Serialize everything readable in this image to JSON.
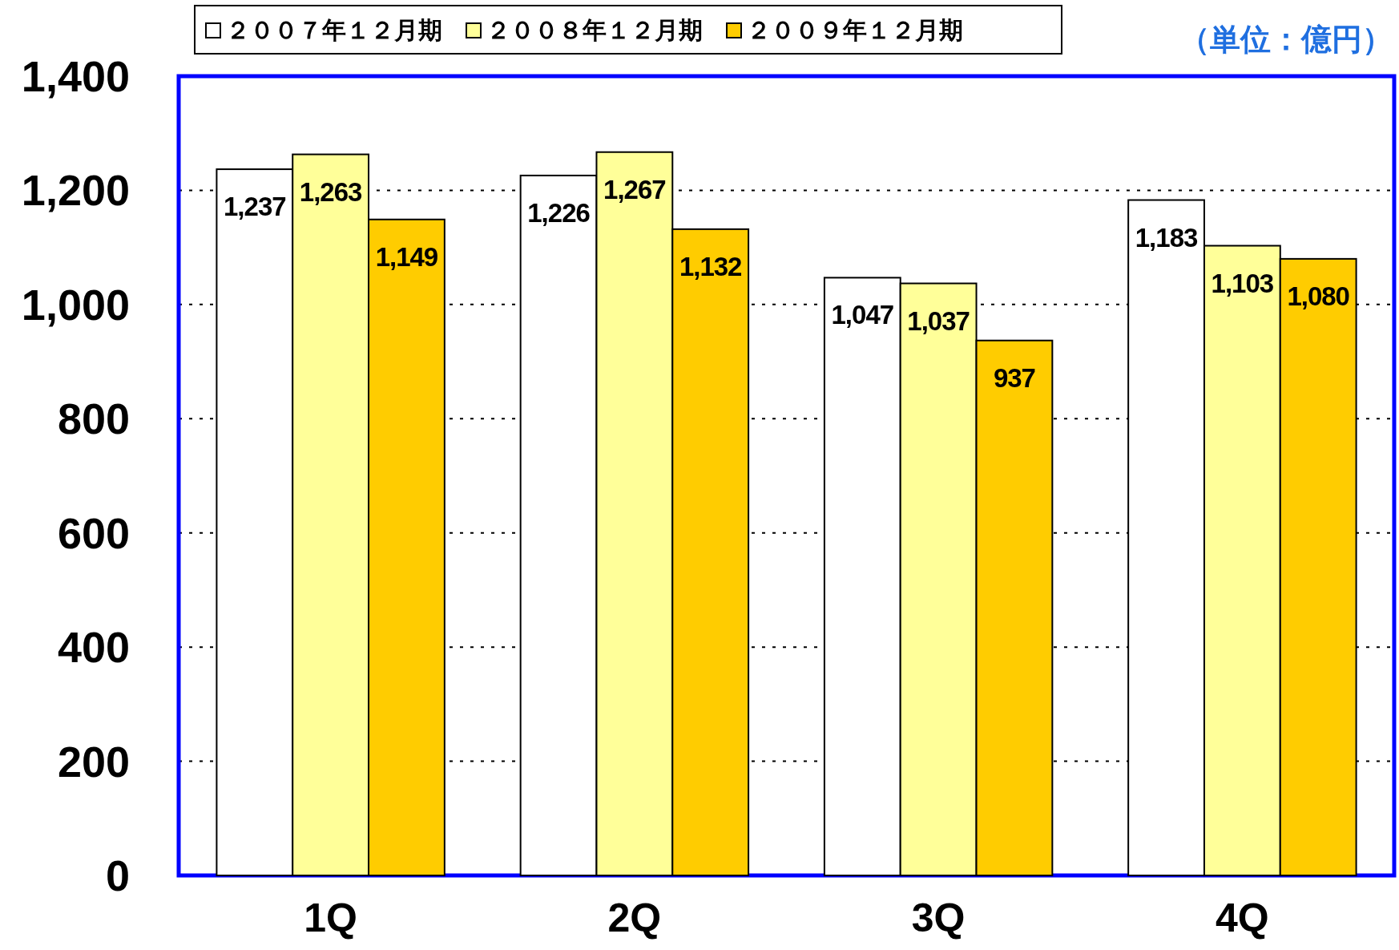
{
  "chart_data": {
    "type": "bar",
    "categories": [
      "1Q",
      "2Q",
      "3Q",
      "4Q"
    ],
    "series": [
      {
        "name": "２００７年１２月期",
        "color": "#ffffff",
        "values": [
          1237,
          1226,
          1047,
          1183
        ],
        "value_labels": [
          "1,237",
          "1,226",
          "1,047",
          "1,183"
        ]
      },
      {
        "name": "２００８年１２月期",
        "color": "#ffff99",
        "values": [
          1263,
          1267,
          1037,
          1103
        ],
        "value_labels": [
          "1,263",
          "1,267",
          "1,037",
          "1,103"
        ]
      },
      {
        "name": "２００９年１２月期",
        "color": "#ffcc00",
        "values": [
          1149,
          1132,
          937,
          1080
        ],
        "value_labels": [
          "1,149",
          "1,132",
          "937",
          "1,080"
        ]
      }
    ],
    "ylim": [
      0,
      1400
    ],
    "yticks": [
      0,
      {
        "value": 200,
        "label": "200"
      },
      400,
      600,
      800,
      {
        "value": 1000,
        "label": "1,000"
      },
      {
        "value": 1200,
        "label": "1,200"
      },
      {
        "value": 1400,
        "label": "1,400"
      }
    ],
    "grid": "y",
    "legend": "top",
    "annotations": [
      "（単位：億円）"
    ]
  }
}
